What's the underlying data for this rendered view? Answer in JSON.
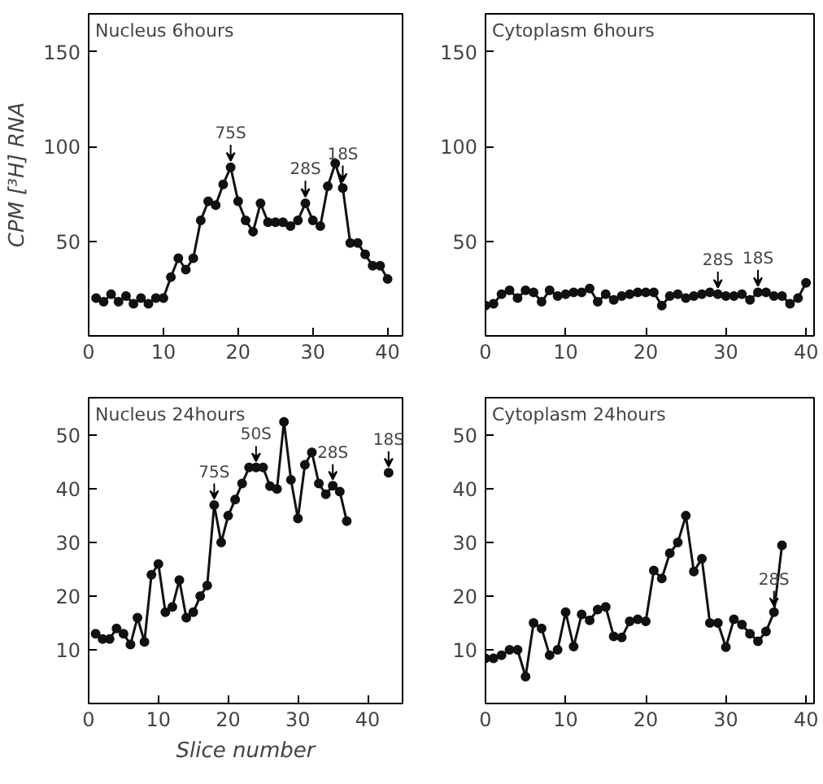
{
  "chart_data": [
    {
      "type": "line",
      "title": "Nucleus 6hours",
      "ylabel": "CPM [³H] RNA",
      "x": [
        1,
        2,
        3,
        4,
        5,
        6,
        7,
        8,
        9,
        10,
        11,
        12,
        13,
        14,
        15,
        16,
        17,
        18,
        19,
        20,
        21,
        22,
        23,
        24,
        25,
        26,
        27,
        28,
        29,
        30,
        31,
        32,
        33,
        34,
        35,
        36,
        37,
        38,
        39,
        40
      ],
      "series": [
        {
          "color": "#111111",
          "values": [
            20,
            18,
            22,
            18,
            21,
            17,
            20,
            17,
            20,
            20,
            31,
            41,
            35,
            41,
            61,
            71,
            69,
            80,
            89,
            71,
            61,
            55,
            70,
            60,
            60,
            60,
            58,
            61,
            70,
            61,
            58,
            79,
            91,
            78,
            49,
            49,
            43,
            37,
            37,
            30
          ]
        }
      ],
      "xlim": [
        0,
        42
      ],
      "ylim": [
        0,
        170
      ],
      "xticks": [
        0,
        10,
        20,
        30,
        40
      ],
      "yticks": [
        50,
        100,
        150
      ],
      "marker": "circle",
      "annotations": [
        {
          "text": "75S",
          "x": 19,
          "y": 89
        },
        {
          "text": "28S",
          "x": 29,
          "y": 70
        },
        {
          "text": "18S",
          "x": 34,
          "y": 78
        }
      ]
    },
    {
      "type": "line",
      "title": "Cytoplasm 6hours",
      "x": [
        0,
        1,
        2,
        3,
        4,
        5,
        6,
        7,
        8,
        9,
        10,
        11,
        12,
        13,
        14,
        15,
        16,
        17,
        18,
        19,
        20,
        21,
        22,
        23,
        24,
        25,
        26,
        27,
        28,
        29,
        30,
        31,
        32,
        33,
        34,
        35,
        36,
        37,
        38,
        39,
        40
      ],
      "series": [
        {
          "color": "#111111",
          "values": [
            16,
            17,
            22,
            24,
            20,
            24,
            23,
            18,
            24,
            21,
            22,
            23,
            23,
            25,
            18,
            22,
            19,
            21,
            22,
            23,
            23,
            23,
            16,
            21,
            22,
            20,
            21,
            22,
            23,
            22,
            21,
            21,
            22,
            19,
            23,
            23,
            21,
            21,
            17,
            20,
            28
          ]
        }
      ],
      "xlim": [
        0,
        41
      ],
      "ylim": [
        0,
        170
      ],
      "xticks": [
        0,
        10,
        20,
        30,
        40
      ],
      "yticks": [
        50,
        100,
        150
      ],
      "marker": "circle",
      "annotations": [
        {
          "text": "28S",
          "x": 29,
          "y": 22
        },
        {
          "text": "18S",
          "x": 34,
          "y": 23
        }
      ]
    },
    {
      "type": "line",
      "title": "Nucleus 24hours",
      "xlabel": "Slice number",
      "x": [
        1,
        2,
        3,
        4,
        5,
        6,
        7,
        8,
        9,
        10,
        11,
        12,
        13,
        14,
        15,
        16,
        17,
        18,
        19,
        20,
        21,
        22,
        23,
        24,
        25,
        26,
        27,
        28,
        29,
        30,
        31,
        32,
        33,
        34,
        35,
        36,
        37,
        40,
        43
      ],
      "series": [
        {
          "color": "#111111",
          "values": [
            13,
            12,
            12,
            14,
            13,
            11,
            16,
            11.5,
            24,
            26,
            17,
            18,
            23,
            16,
            17,
            20,
            22,
            37,
            30,
            35,
            38,
            41,
            44,
            44,
            44,
            40.5,
            40,
            52.5,
            41.7,
            34.5,
            44.5,
            46.8,
            41,
            39,
            40.6,
            39.5,
            34,
            null,
            43
          ]
        }
      ],
      "xlim": [
        0,
        45
      ],
      "ylim": [
        0,
        57
      ],
      "xticks": [
        0,
        10,
        20,
        30,
        40
      ],
      "yticks": [
        10,
        20,
        30,
        40,
        50
      ],
      "marker": "circle",
      "annotations": [
        {
          "text": "75S",
          "x": 18,
          "y": 37
        },
        {
          "text": "50S",
          "x": 24,
          "y": 44
        },
        {
          "text": "28S",
          "x": 35,
          "y": 40.6
        },
        {
          "text": "18S",
          "x": 43,
          "y": 43
        }
      ]
    },
    {
      "type": "line",
      "title": "Cytoplasm 24hours",
      "x": [
        0,
        1,
        2,
        3,
        4,
        5,
        6,
        7,
        8,
        9,
        10,
        11,
        12,
        13,
        14,
        15,
        16,
        17,
        18,
        19,
        20,
        21,
        22,
        23,
        24,
        25,
        26,
        27,
        28,
        29,
        30,
        31,
        32,
        33,
        34,
        35,
        36,
        37
      ],
      "series": [
        {
          "color": "#111111",
          "values": [
            8.4,
            8.4,
            9,
            10,
            10,
            5,
            15,
            14,
            9,
            10,
            17,
            10.6,
            16.6,
            15.5,
            17.5,
            18,
            12.5,
            12.3,
            15.3,
            15.7,
            15.3,
            24.8,
            23.3,
            28,
            30,
            35,
            24.6,
            27,
            15,
            15,
            10.5,
            15.7,
            14.7,
            13,
            11.6,
            13.4,
            17,
            29.5
          ]
        }
      ],
      "xlim": [
        0,
        41
      ],
      "ylim": [
        0,
        57
      ],
      "xticks": [
        0,
        10,
        20,
        30,
        40
      ],
      "yticks": [
        10,
        20,
        30,
        40,
        50
      ],
      "marker": "circle",
      "annotations": [
        {
          "text": "28S",
          "x": 36,
          "y": 17
        }
      ]
    }
  ]
}
